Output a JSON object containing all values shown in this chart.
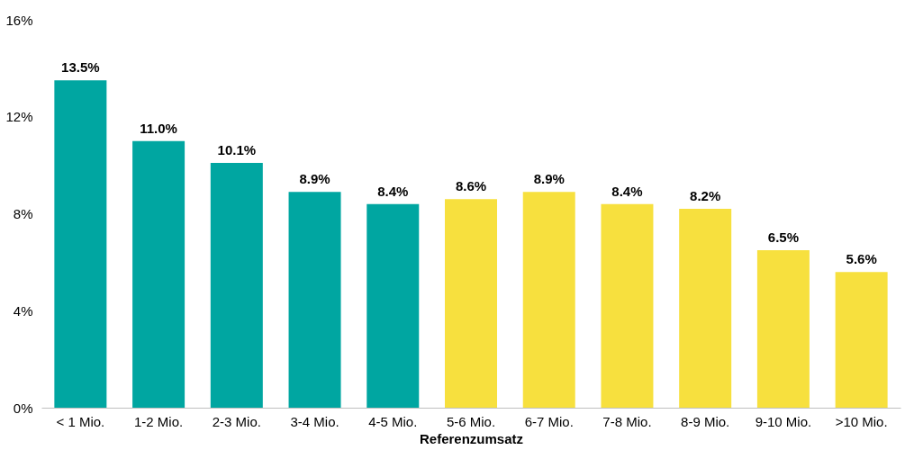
{
  "chart_data": {
    "type": "bar",
    "xlabel": "Referenzumsatz",
    "categories": [
      "< 1 Mio.",
      "1-2 Mio.",
      "2-3 Mio.",
      "3-4 Mio.",
      "4-5 Mio.",
      "5-6 Mio.",
      "6-7 Mio.",
      "7-8 Mio.",
      "8-9 Mio.",
      "9-10 Mio.",
      ">10 Mio."
    ],
    "values": [
      13.5,
      11.0,
      10.1,
      8.9,
      8.4,
      8.6,
      8.9,
      8.4,
      8.2,
      6.5,
      5.6
    ],
    "value_labels": [
      "13.5%",
      "11.0%",
      "10.1%",
      "8.9%",
      "8.4%",
      "8.6%",
      "8.9%",
      "8.4%",
      "8.2%",
      "6.5%",
      "5.6%"
    ],
    "colors": [
      "#00a6a1",
      "#00a6a1",
      "#00a6a1",
      "#00a6a1",
      "#00a6a1",
      "#f7e03e",
      "#f7e03e",
      "#f7e03e",
      "#f7e03e",
      "#f7e03e",
      "#f7e03e"
    ],
    "ylim": [
      0,
      16
    ],
    "yticks": [
      {
        "value": 0,
        "label": "0%"
      },
      {
        "value": 4,
        "label": "4%"
      },
      {
        "value": 8,
        "label": "8%"
      },
      {
        "value": 12,
        "label": "12%"
      },
      {
        "value": 16,
        "label": "16%"
      }
    ],
    "grid": false
  }
}
